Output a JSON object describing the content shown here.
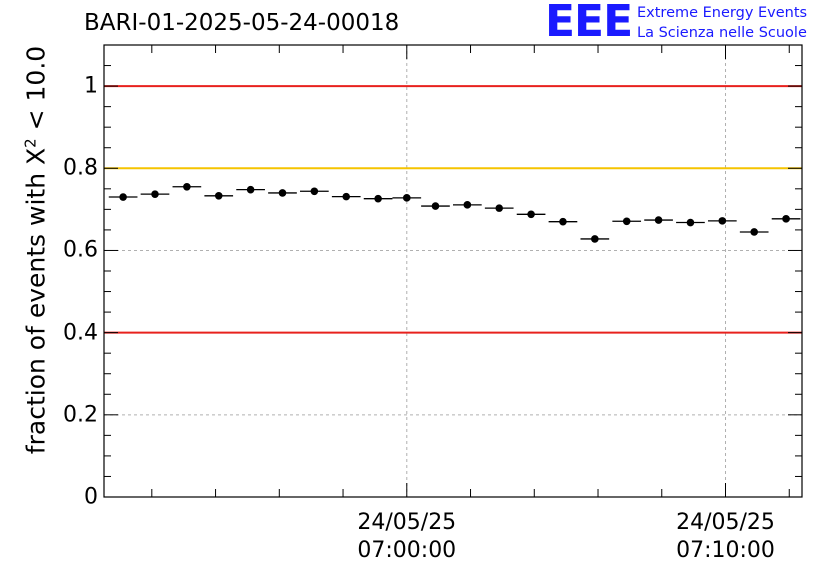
{
  "header": {
    "run_title": "BARI-01-2025-05-24-00018",
    "logo": "EEE",
    "logo_line1": "Extreme Energy Events",
    "logo_line2": "La Scienza nelle Scuole"
  },
  "chart_data": {
    "type": "scatter",
    "ylabel_prefix": "fraction of events with X",
    "ylabel_sup": "2",
    "ylabel_suffix": " < 10.0",
    "ylim": [
      0,
      1.1
    ],
    "yticks": [
      {
        "value": 0,
        "label": "0"
      },
      {
        "value": 0.2,
        "label": "0.2"
      },
      {
        "value": 0.4,
        "label": "0.4"
      },
      {
        "value": 0.6,
        "label": "0.6"
      },
      {
        "value": 0.8,
        "label": "0.8"
      },
      {
        "value": 1,
        "label": "1"
      }
    ],
    "xlim_minutes": [
      -9.5,
      12.4
    ],
    "xticks": [
      {
        "minute": 0,
        "date": "24/05/25",
        "time": "07:00:00"
      },
      {
        "minute": 10,
        "date": "24/05/25",
        "time": "07:10:00"
      }
    ],
    "reference_lines": [
      {
        "y": 1.0,
        "color": "#e8211d"
      },
      {
        "y": 0.8,
        "color": "#f5c400"
      },
      {
        "y": 0.4,
        "color": "#e8211d"
      }
    ],
    "bin_width_minutes": 0.9,
    "points": [
      {
        "x": -8.9,
        "y": 0.73
      },
      {
        "x": -7.9,
        "y": 0.737
      },
      {
        "x": -6.9,
        "y": 0.755
      },
      {
        "x": -5.9,
        "y": 0.733
      },
      {
        "x": -4.9,
        "y": 0.748
      },
      {
        "x": -3.9,
        "y": 0.74
      },
      {
        "x": -2.9,
        "y": 0.744
      },
      {
        "x": -1.9,
        "y": 0.731
      },
      {
        "x": -0.9,
        "y": 0.726
      },
      {
        "x": 0.0,
        "y": 0.728
      },
      {
        "x": 0.9,
        "y": 0.708
      },
      {
        "x": 1.9,
        "y": 0.711
      },
      {
        "x": 2.9,
        "y": 0.703
      },
      {
        "x": 3.9,
        "y": 0.688
      },
      {
        "x": 4.9,
        "y": 0.67
      },
      {
        "x": 5.9,
        "y": 0.628
      },
      {
        "x": 6.9,
        "y": 0.671
      },
      {
        "x": 7.9,
        "y": 0.674
      },
      {
        "x": 8.9,
        "y": 0.668
      },
      {
        "x": 9.9,
        "y": 0.672
      },
      {
        "x": 10.9,
        "y": 0.645
      },
      {
        "x": 11.9,
        "y": 0.677
      }
    ]
  }
}
